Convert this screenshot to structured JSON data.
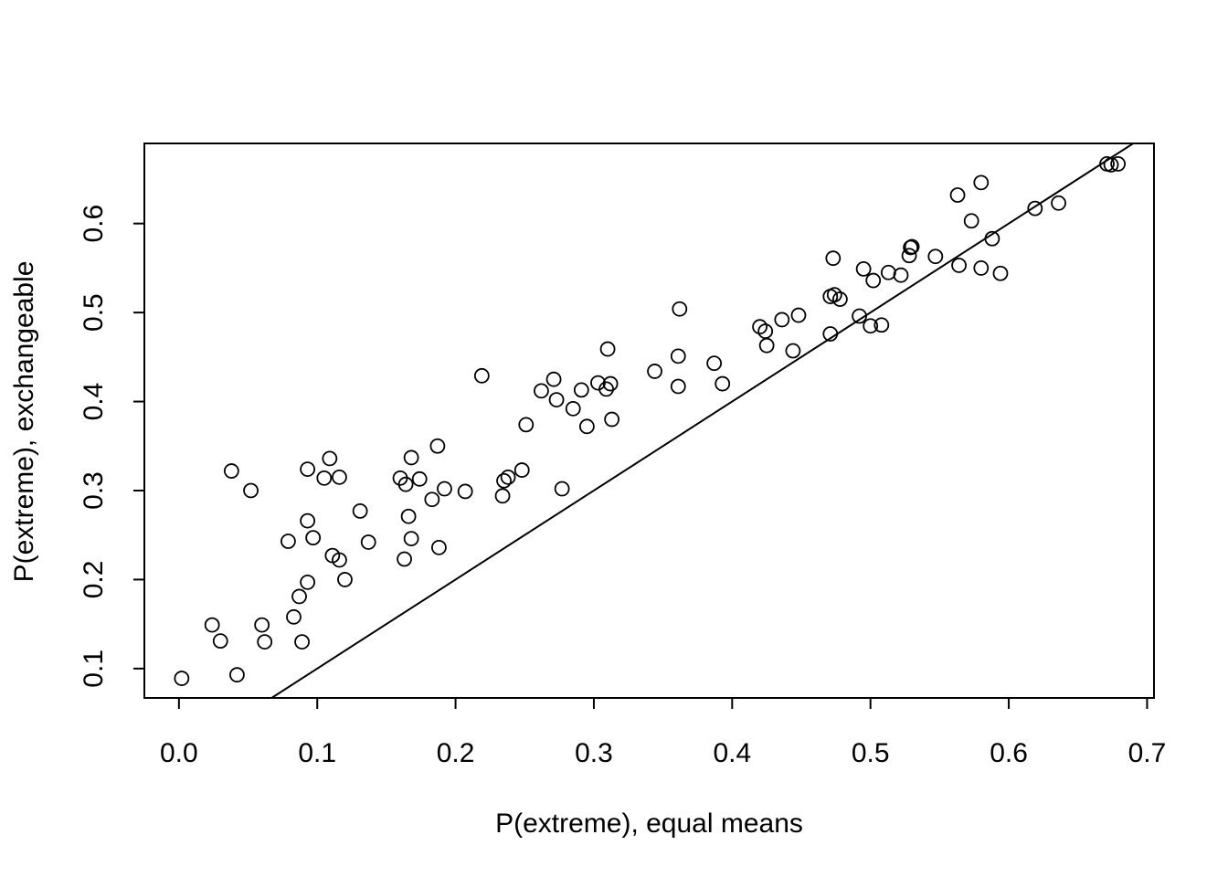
{
  "chart_data": {
    "type": "scatter",
    "title": "",
    "xlabel": "P(extreme), equal means",
    "ylabel": "P(extreme), exchangeable",
    "xlim": [
      -0.025,
      0.705
    ],
    "ylim": [
      0.067,
      0.69
    ],
    "xticks": [
      0.0,
      0.1,
      0.2,
      0.3,
      0.4,
      0.5,
      0.6,
      0.7
    ],
    "xtick_labels": [
      "0.0",
      "0.1",
      "0.2",
      "0.3",
      "0.4",
      "0.5",
      "0.6",
      "0.7"
    ],
    "yticks": [
      0.1,
      0.2,
      0.3,
      0.4,
      0.5,
      0.6
    ],
    "ytick_labels": [
      "0.1",
      "0.2",
      "0.3",
      "0.4",
      "0.5",
      "0.6"
    ],
    "grid": false,
    "reference_line": {
      "type": "identity",
      "intercept": 0,
      "slope": 1
    },
    "points": [
      {
        "x": 0.002,
        "y": 0.089
      },
      {
        "x": 0.024,
        "y": 0.149
      },
      {
        "x": 0.03,
        "y": 0.131
      },
      {
        "x": 0.038,
        "y": 0.322
      },
      {
        "x": 0.042,
        "y": 0.093
      },
      {
        "x": 0.052,
        "y": 0.3
      },
      {
        "x": 0.06,
        "y": 0.149
      },
      {
        "x": 0.062,
        "y": 0.13
      },
      {
        "x": 0.079,
        "y": 0.243
      },
      {
        "x": 0.083,
        "y": 0.158
      },
      {
        "x": 0.087,
        "y": 0.181
      },
      {
        "x": 0.089,
        "y": 0.13
      },
      {
        "x": 0.093,
        "y": 0.324
      },
      {
        "x": 0.093,
        "y": 0.266
      },
      {
        "x": 0.093,
        "y": 0.197
      },
      {
        "x": 0.097,
        "y": 0.247
      },
      {
        "x": 0.105,
        "y": 0.314
      },
      {
        "x": 0.109,
        "y": 0.336
      },
      {
        "x": 0.111,
        "y": 0.227
      },
      {
        "x": 0.116,
        "y": 0.315
      },
      {
        "x": 0.116,
        "y": 0.222
      },
      {
        "x": 0.12,
        "y": 0.2
      },
      {
        "x": 0.131,
        "y": 0.277
      },
      {
        "x": 0.137,
        "y": 0.242
      },
      {
        "x": 0.16,
        "y": 0.314
      },
      {
        "x": 0.163,
        "y": 0.223
      },
      {
        "x": 0.164,
        "y": 0.307
      },
      {
        "x": 0.166,
        "y": 0.271
      },
      {
        "x": 0.168,
        "y": 0.337
      },
      {
        "x": 0.168,
        "y": 0.246
      },
      {
        "x": 0.174,
        "y": 0.313
      },
      {
        "x": 0.183,
        "y": 0.29
      },
      {
        "x": 0.187,
        "y": 0.35
      },
      {
        "x": 0.188,
        "y": 0.236
      },
      {
        "x": 0.192,
        "y": 0.302
      },
      {
        "x": 0.207,
        "y": 0.299
      },
      {
        "x": 0.219,
        "y": 0.429
      },
      {
        "x": 0.234,
        "y": 0.294
      },
      {
        "x": 0.235,
        "y": 0.311
      },
      {
        "x": 0.238,
        "y": 0.315
      },
      {
        "x": 0.248,
        "y": 0.323
      },
      {
        "x": 0.251,
        "y": 0.374
      },
      {
        "x": 0.262,
        "y": 0.412
      },
      {
        "x": 0.271,
        "y": 0.425
      },
      {
        "x": 0.273,
        "y": 0.402
      },
      {
        "x": 0.277,
        "y": 0.302
      },
      {
        "x": 0.285,
        "y": 0.392
      },
      {
        "x": 0.291,
        "y": 0.413
      },
      {
        "x": 0.295,
        "y": 0.372
      },
      {
        "x": 0.303,
        "y": 0.421
      },
      {
        "x": 0.309,
        "y": 0.414
      },
      {
        "x": 0.31,
        "y": 0.459
      },
      {
        "x": 0.312,
        "y": 0.42
      },
      {
        "x": 0.313,
        "y": 0.38
      },
      {
        "x": 0.344,
        "y": 0.434
      },
      {
        "x": 0.361,
        "y": 0.417
      },
      {
        "x": 0.361,
        "y": 0.451
      },
      {
        "x": 0.362,
        "y": 0.504
      },
      {
        "x": 0.387,
        "y": 0.443
      },
      {
        "x": 0.393,
        "y": 0.42
      },
      {
        "x": 0.42,
        "y": 0.484
      },
      {
        "x": 0.424,
        "y": 0.479
      },
      {
        "x": 0.425,
        "y": 0.463
      },
      {
        "x": 0.436,
        "y": 0.492
      },
      {
        "x": 0.444,
        "y": 0.457
      },
      {
        "x": 0.448,
        "y": 0.497
      },
      {
        "x": 0.471,
        "y": 0.518
      },
      {
        "x": 0.471,
        "y": 0.476
      },
      {
        "x": 0.473,
        "y": 0.561
      },
      {
        "x": 0.474,
        "y": 0.52
      },
      {
        "x": 0.478,
        "y": 0.515
      },
      {
        "x": 0.492,
        "y": 0.496
      },
      {
        "x": 0.495,
        "y": 0.549
      },
      {
        "x": 0.5,
        "y": 0.485
      },
      {
        "x": 0.502,
        "y": 0.536
      },
      {
        "x": 0.508,
        "y": 0.486
      },
      {
        "x": 0.513,
        "y": 0.545
      },
      {
        "x": 0.522,
        "y": 0.542
      },
      {
        "x": 0.528,
        "y": 0.564
      },
      {
        "x": 0.529,
        "y": 0.573
      },
      {
        "x": 0.53,
        "y": 0.574
      },
      {
        "x": 0.547,
        "y": 0.563
      },
      {
        "x": 0.563,
        "y": 0.632
      },
      {
        "x": 0.564,
        "y": 0.553
      },
      {
        "x": 0.573,
        "y": 0.603
      },
      {
        "x": 0.58,
        "y": 0.646
      },
      {
        "x": 0.58,
        "y": 0.55
      },
      {
        "x": 0.588,
        "y": 0.583
      },
      {
        "x": 0.594,
        "y": 0.544
      },
      {
        "x": 0.619,
        "y": 0.617
      },
      {
        "x": 0.636,
        "y": 0.623
      },
      {
        "x": 0.671,
        "y": 0.667
      },
      {
        "x": 0.674,
        "y": 0.666
      },
      {
        "x": 0.679,
        "y": 0.667
      }
    ]
  }
}
